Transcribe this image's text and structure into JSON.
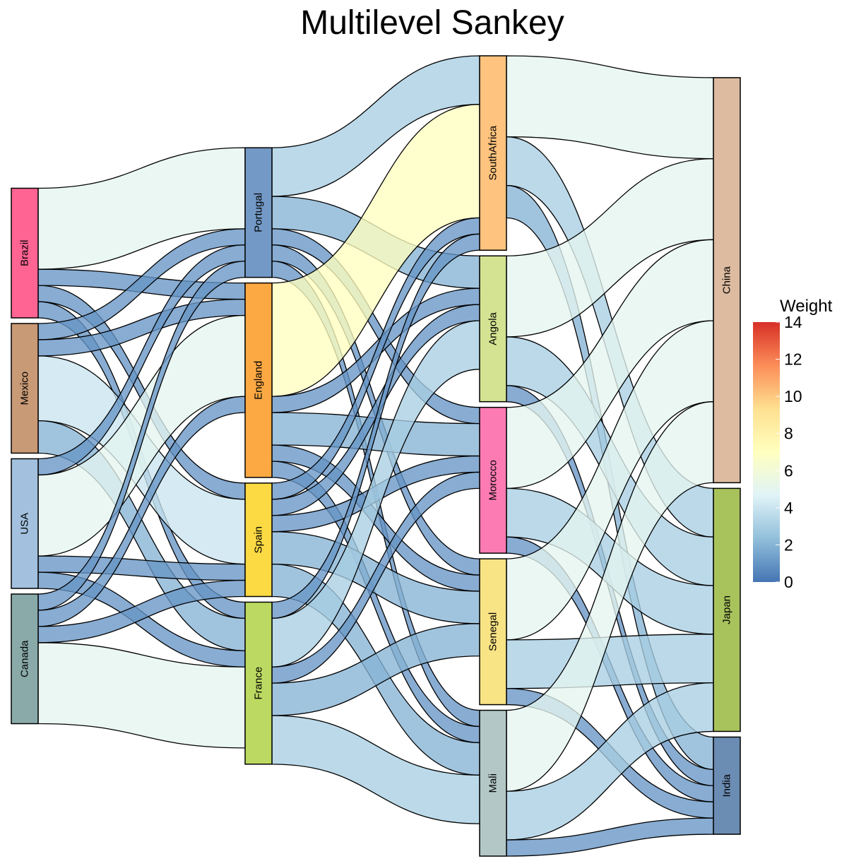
{
  "chart_data": {
    "type": "sankey",
    "title": "Multilevel Sankey",
    "levels": [
      [
        "Brazil",
        "Mexico",
        "USA",
        "Canada"
      ],
      [
        "Portugal",
        "England",
        "Spain",
        "France"
      ],
      [
        "SouthAfrica",
        "Angola",
        "Morocco",
        "Senegal",
        "Mali"
      ],
      [
        "China",
        "Japan",
        "India"
      ]
    ],
    "node_colors": {
      "Brazil": "#ff6493",
      "Mexico": "#c99a76",
      "USA": "#a3c1de",
      "Canada": "#8aaaaa",
      "Portugal": "#7399c6",
      "England": "#fda943",
      "Spain": "#fcda44",
      "France": "#bcd962",
      "SouthAfrica": "#fec37e",
      "Angola": "#d3e391",
      "Morocco": "#fd7bb3",
      "Senegal": "#f8e385",
      "Mali": "#b3c8c6",
      "China": "#dcbba0",
      "Japan": "#a8c35c",
      "India": "#6b8cb3"
    },
    "links": [
      {
        "source": "Brazil",
        "target": "Portugal",
        "value": 5
      },
      {
        "source": "Brazil",
        "target": "England",
        "value": 1
      },
      {
        "source": "Brazil",
        "target": "Spain",
        "value": 1
      },
      {
        "source": "Brazil",
        "target": "France",
        "value": 1
      },
      {
        "source": "Mexico",
        "target": "Portugal",
        "value": 1
      },
      {
        "source": "Mexico",
        "target": "England",
        "value": 1
      },
      {
        "source": "Mexico",
        "target": "Spain",
        "value": 4
      },
      {
        "source": "Mexico",
        "target": "France",
        "value": 2
      },
      {
        "source": "USA",
        "target": "Portugal",
        "value": 1
      },
      {
        "source": "USA",
        "target": "England",
        "value": 5
      },
      {
        "source": "USA",
        "target": "Spain",
        "value": 1
      },
      {
        "source": "USA",
        "target": "France",
        "value": 1
      },
      {
        "source": "Canada",
        "target": "Portugal",
        "value": 1
      },
      {
        "source": "Canada",
        "target": "England",
        "value": 1
      },
      {
        "source": "Canada",
        "target": "Spain",
        "value": 1
      },
      {
        "source": "Canada",
        "target": "France",
        "value": 5
      },
      {
        "source": "Portugal",
        "target": "SouthAfrica",
        "value": 3
      },
      {
        "source": "Portugal",
        "target": "Angola",
        "value": 2
      },
      {
        "source": "Portugal",
        "target": "Morocco",
        "value": 1
      },
      {
        "source": "Portugal",
        "target": "Senegal",
        "value": 1
      },
      {
        "source": "Portugal",
        "target": "Mali",
        "value": 1
      },
      {
        "source": "England",
        "target": "SouthAfrica",
        "value": 7
      },
      {
        "source": "England",
        "target": "Angola",
        "value": 1
      },
      {
        "source": "England",
        "target": "Morocco",
        "value": 2
      },
      {
        "source": "England",
        "target": "Senegal",
        "value": 1
      },
      {
        "source": "England",
        "target": "Mali",
        "value": 1
      },
      {
        "source": "Spain",
        "target": "SouthAfrica",
        "value": 1
      },
      {
        "source": "Spain",
        "target": "Angola",
        "value": 1
      },
      {
        "source": "Spain",
        "target": "Morocco",
        "value": 1
      },
      {
        "source": "Spain",
        "target": "Senegal",
        "value": 2
      },
      {
        "source": "Spain",
        "target": "Mali",
        "value": 2
      },
      {
        "source": "France",
        "target": "SouthAfrica",
        "value": 1
      },
      {
        "source": "France",
        "target": "Angola",
        "value": 3
      },
      {
        "source": "France",
        "target": "Morocco",
        "value": 1
      },
      {
        "source": "France",
        "target": "Senegal",
        "value": 2
      },
      {
        "source": "France",
        "target": "Mali",
        "value": 3
      },
      {
        "source": "SouthAfrica",
        "target": "China",
        "value": 5
      },
      {
        "source": "SouthAfrica",
        "target": "Japan",
        "value": 3
      },
      {
        "source": "SouthAfrica",
        "target": "India",
        "value": 2
      },
      {
        "source": "Angola",
        "target": "China",
        "value": 5
      },
      {
        "source": "Angola",
        "target": "Japan",
        "value": 3
      },
      {
        "source": "Angola",
        "target": "India",
        "value": 1
      },
      {
        "source": "Morocco",
        "target": "China",
        "value": 5
      },
      {
        "source": "Morocco",
        "target": "Japan",
        "value": 3
      },
      {
        "source": "Morocco",
        "target": "India",
        "value": 1
      },
      {
        "source": "Senegal",
        "target": "China",
        "value": 5
      },
      {
        "source": "Senegal",
        "target": "Japan",
        "value": 3
      },
      {
        "source": "Senegal",
        "target": "India",
        "value": 1
      },
      {
        "source": "Mali",
        "target": "China",
        "value": 5
      },
      {
        "source": "Mali",
        "target": "Japan",
        "value": 3
      },
      {
        "source": "Mali",
        "target": "India",
        "value": 1
      }
    ],
    "legend": {
      "title": "Weight",
      "ticks": [
        "0",
        "2",
        "4",
        "6",
        "8",
        "10",
        "12",
        "14"
      ],
      "range": [
        0,
        14
      ],
      "colors": [
        "#4575b4",
        "#91bfdb",
        "#e0f3f8",
        "#ffffbf",
        "#fee090",
        "#fc8d59",
        "#d73027"
      ],
      "placement": "right"
    }
  }
}
